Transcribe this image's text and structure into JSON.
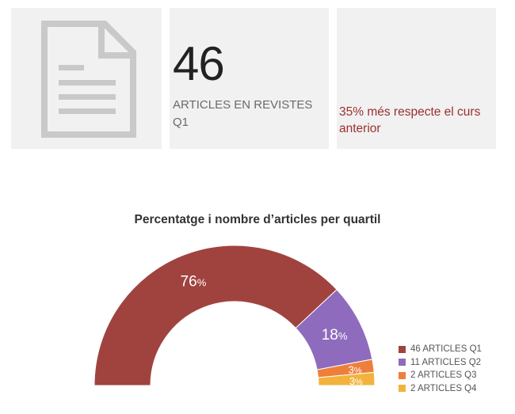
{
  "kpi": {
    "icon": "document-icon",
    "count_value": "46",
    "count_label": "ARTICLES EN REVISTES Q1",
    "change_text": "35% més respecte el curs anterior"
  },
  "chart_data": {
    "type": "donut",
    "title": "Percentatge i nombre d’articles per quartil",
    "slices": [
      {
        "label": "46 ARTICLES Q1",
        "value": 76,
        "display": "76",
        "color": "#a0433f"
      },
      {
        "label": "11 ARTICLES Q2",
        "value": 18,
        "display": "18",
        "color": "#8e6bbd"
      },
      {
        "label": "2 ARTICLES Q3",
        "value": 3,
        "display": "3",
        "color": "#ee7f3b"
      },
      {
        "label": "2 ARTICLES Q4",
        "value": 3,
        "display": "3",
        "color": "#f2b33d"
      }
    ],
    "unit": "%",
    "legend_position": "bottom-right"
  }
}
